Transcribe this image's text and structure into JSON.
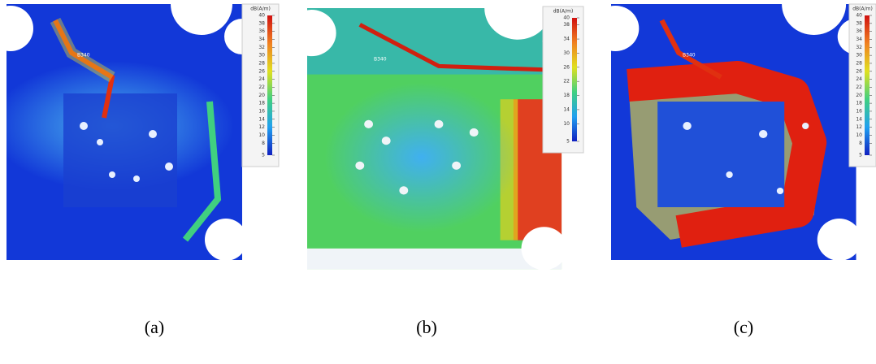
{
  "panels": [
    {
      "caption": "(a)",
      "colorbar_title": "dB(A/m)",
      "colorbar_ticks": [
        40,
        38,
        36,
        34,
        32,
        30,
        28,
        26,
        24,
        22,
        20,
        18,
        16,
        14,
        12,
        10,
        8,
        5
      ],
      "trace_label": "B340"
    },
    {
      "caption": "(b)",
      "colorbar_title": "dB(A/m)",
      "colorbar_ticks": [
        40,
        38,
        34,
        30,
        26,
        22,
        18,
        14,
        10,
        5
      ],
      "trace_label": "B340"
    },
    {
      "caption": "(c)",
      "colorbar_title": "dB(A/m)",
      "colorbar_ticks": [
        40,
        38,
        36,
        34,
        32,
        30,
        28,
        26,
        24,
        22,
        20,
        18,
        16,
        14,
        12,
        10,
        8,
        5
      ],
      "trace_label": "B340"
    }
  ]
}
